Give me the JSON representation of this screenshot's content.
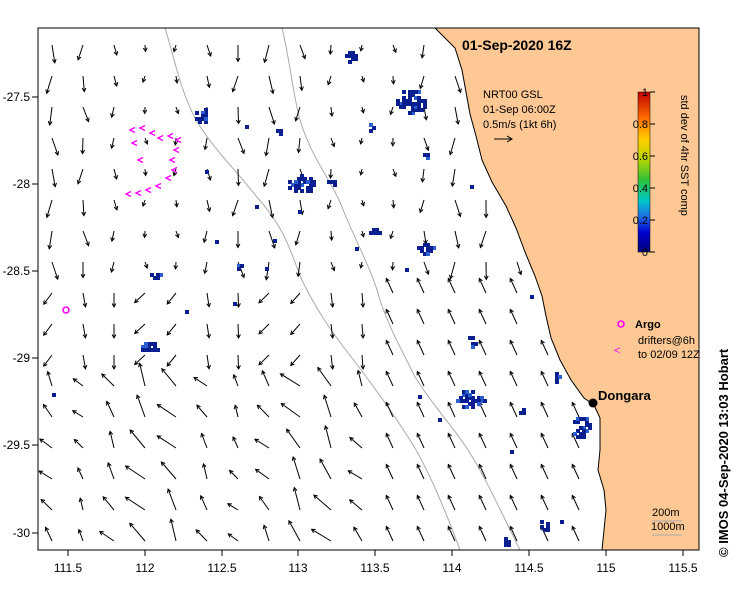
{
  "map": {
    "title": "01-Sep-2020 16Z",
    "current_label": "NRT00 GSL",
    "current_time": "01-Sep 06:00Z",
    "current_scale": "0.5m/s (1kt 6h)",
    "city": "Dongara",
    "argo_label": "Argo",
    "drifters_line1": "drifters@6h",
    "drifters_line2": "to 02/09 12Z",
    "depth_label1": "200m",
    "depth_label2": "1000m",
    "credit": "© IMOS 04-Sep-2020 13:03 Hobart",
    "colorbar_title": "std dev of 4hr SST comp",
    "colorbar_ticks": [
      "0",
      "0.2",
      "0.4",
      "0.6",
      "0.8",
      "1"
    ],
    "x_ticks": [
      "111.5",
      "112",
      "112.5",
      "113",
      "113.5",
      "114",
      "114.5",
      "115",
      "115.5"
    ],
    "y_ticks": [
      "-27.5",
      "-28",
      "-28.5",
      "-29",
      "-29.5",
      "-30"
    ],
    "colors": {
      "land": "#fdc894",
      "pixel": "#0a1f8f",
      "pixel_light": "#2a5fd0",
      "drifter": "#ff00ff",
      "isobath": "#aaaaaa"
    }
  }
}
